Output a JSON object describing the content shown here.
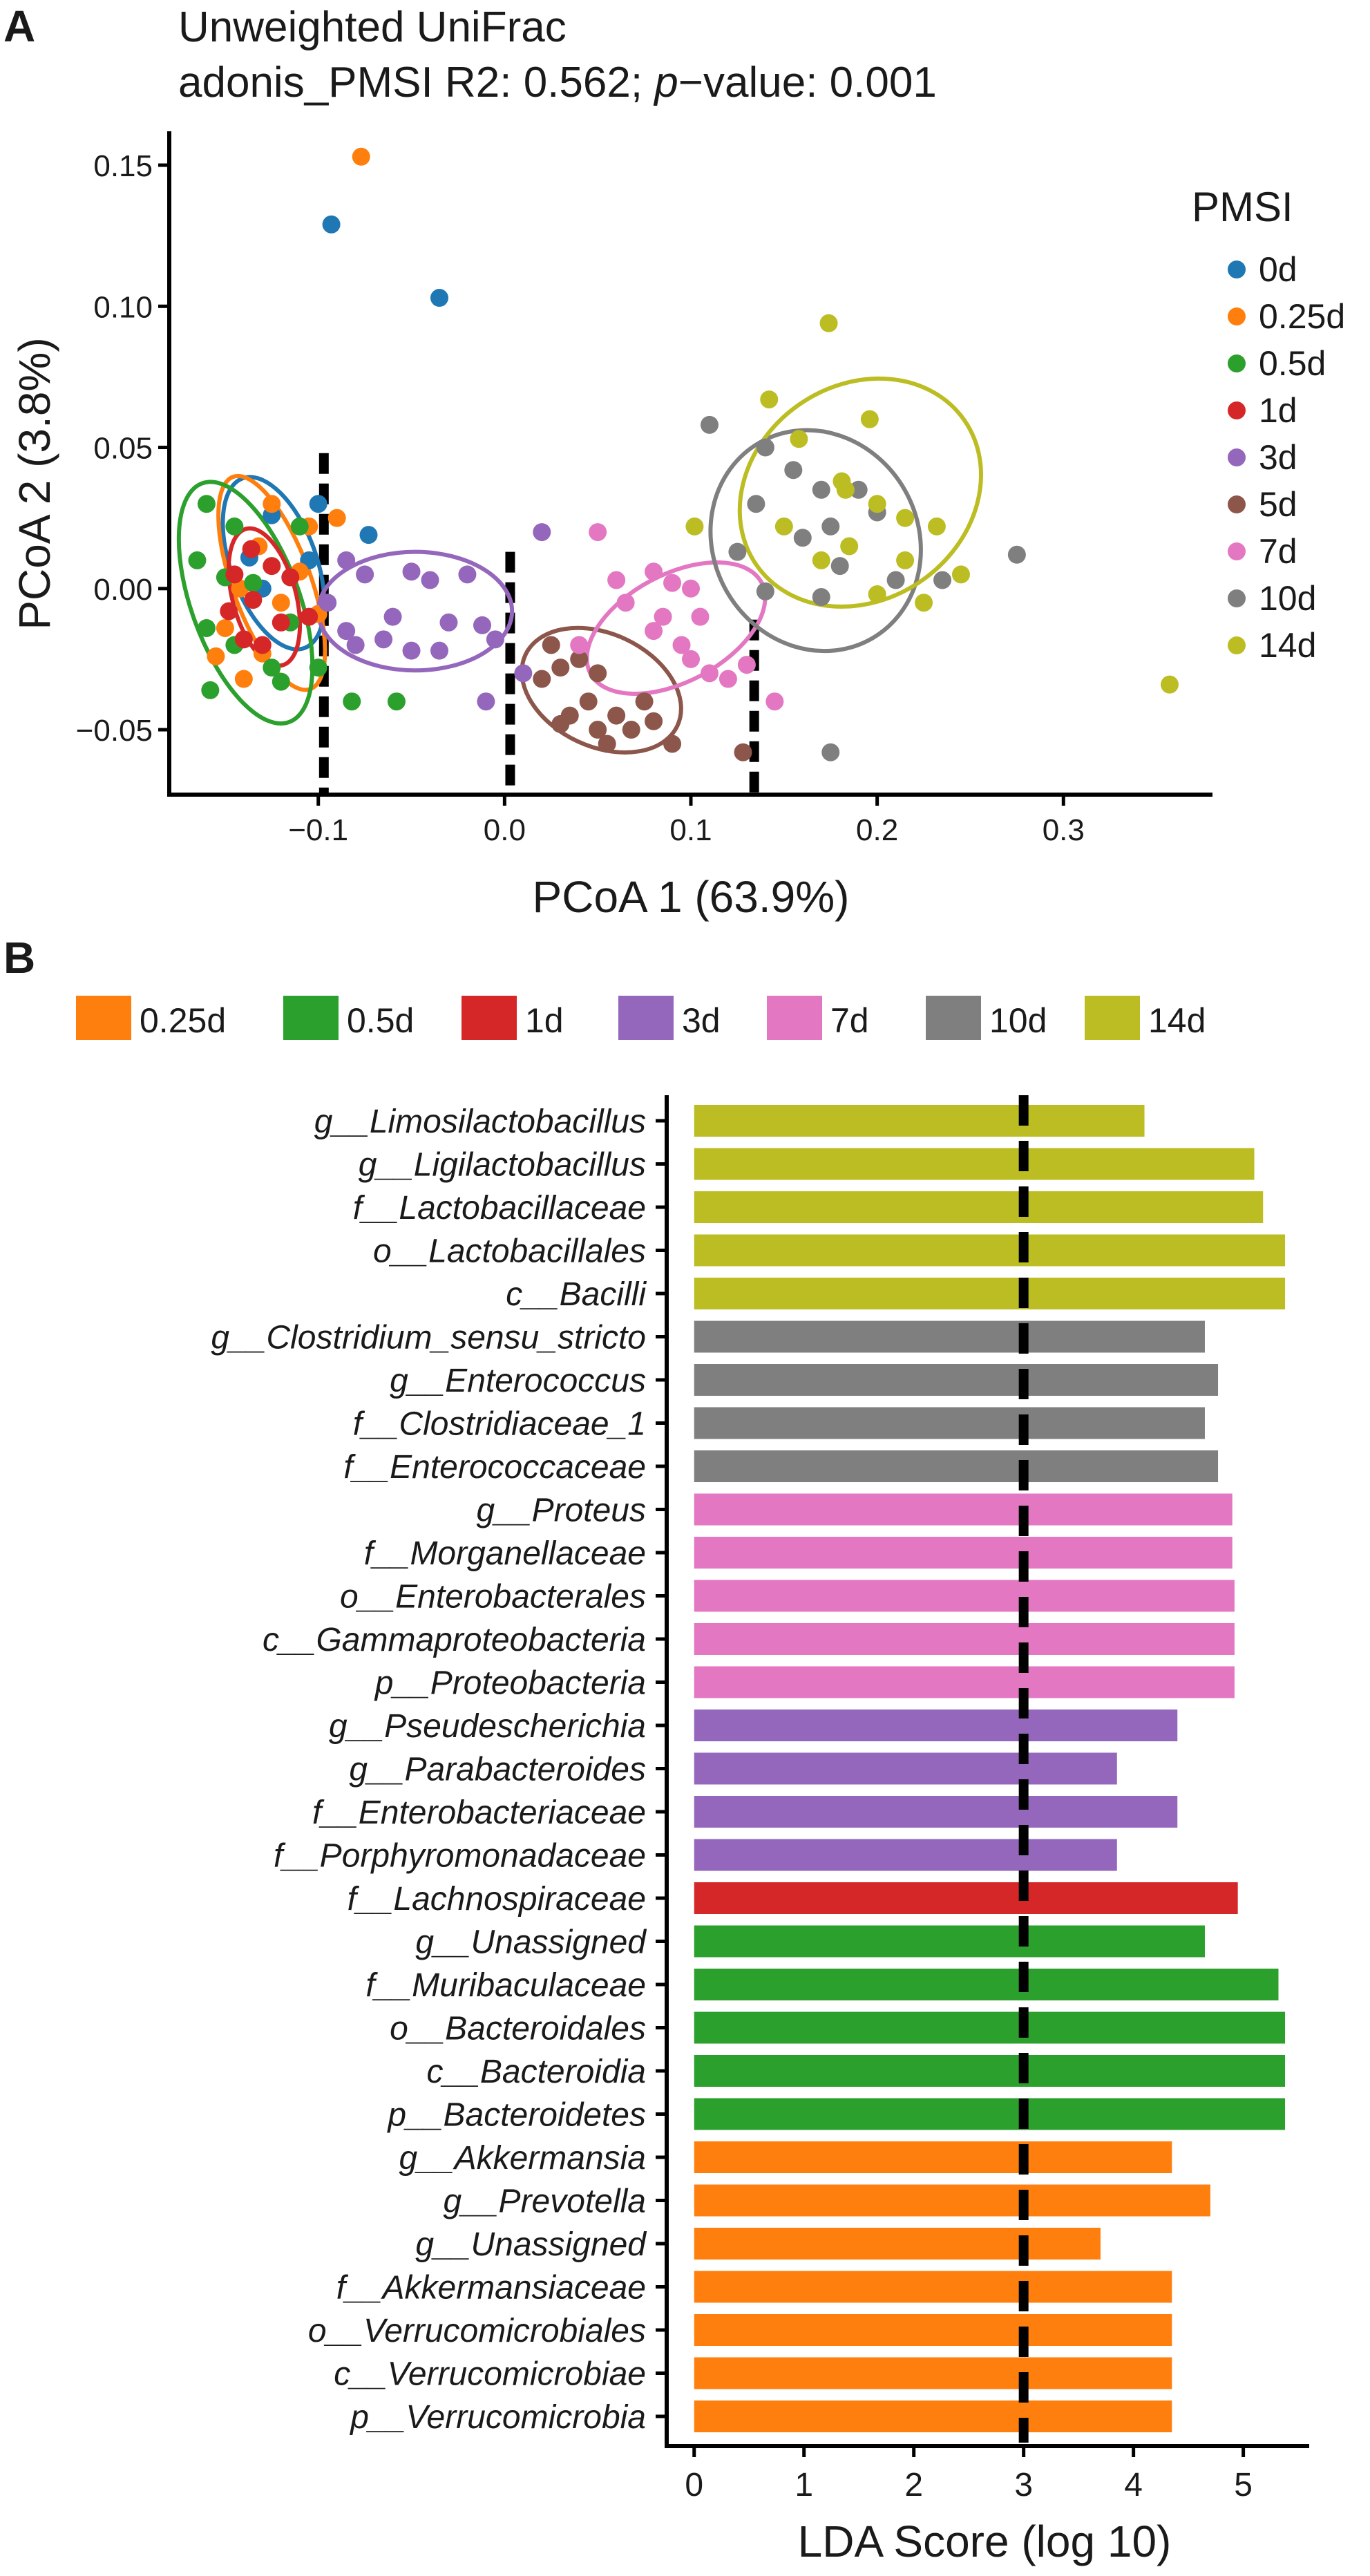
{
  "panel_a_label": "A",
  "panel_b_label": "B",
  "chart_data": [
    {
      "type": "scatter",
      "title": "Unweighted UniFrac",
      "subtitle": {
        "prefix": "adonis_PMSI R2: 0.562; ",
        "italic": "p",
        "suffix": "−value: 0.001"
      },
      "xlabel": "PCoA 1 (63.9%)",
      "ylabel": "PCoA 2 (3.8%)",
      "xlim": [
        -0.18,
        0.38
      ],
      "ylim": [
        -0.073,
        0.162
      ],
      "x_ticks": [
        {
          "value": -0.1,
          "label": "−0.1"
        },
        {
          "value": 0.0,
          "label": "0.0"
        },
        {
          "value": 0.1,
          "label": "0.1"
        },
        {
          "value": 0.2,
          "label": "0.2"
        },
        {
          "value": 0.3,
          "label": "0.3"
        }
      ],
      "y_ticks": [
        {
          "value": 0.15,
          "label": "0.15"
        },
        {
          "value": 0.1,
          "label": "0.10"
        },
        {
          "value": 0.05,
          "label": "0.05"
        },
        {
          "value": 0.0,
          "label": "0.00"
        },
        {
          "value": -0.05,
          "label": "−0.05"
        }
      ],
      "vlines": [
        {
          "x": -0.097,
          "y": [
            -0.085,
            0.048
          ]
        },
        {
          "x": 0.003,
          "y": [
            -0.085,
            0.013
          ]
        },
        {
          "x": 0.134,
          "y": [
            -0.085,
            -0.011
          ]
        }
      ],
      "legend_title": "PMSI",
      "legend_position": "right",
      "series": [
        {
          "name": "0d",
          "color": "#1f77b4",
          "points": [
            [
              -0.093,
              0.129
            ],
            [
              -0.035,
              0.103
            ],
            [
              -0.125,
              0.026
            ],
            [
              -0.1,
              0.03
            ],
            [
              -0.073,
              0.019
            ],
            [
              -0.137,
              0.011
            ],
            [
              -0.105,
              0.01
            ],
            [
              -0.13,
              0.0
            ]
          ],
          "ellipse": {
            "cx": -0.124,
            "cy": 0.009,
            "rx": 0.023,
            "ry": 0.032,
            "angle": -20
          }
        },
        {
          "name": "0.25d",
          "color": "#ff7f0e",
          "points": [
            [
              -0.077,
              0.153
            ],
            [
              -0.125,
              0.03
            ],
            [
              -0.105,
              0.022
            ],
            [
              -0.09,
              0.025
            ],
            [
              -0.132,
              0.015
            ],
            [
              -0.11,
              0.006
            ],
            [
              -0.142,
              0.0
            ],
            [
              -0.12,
              -0.005
            ],
            [
              -0.15,
              -0.014
            ],
            [
              -0.13,
              -0.023
            ],
            [
              -0.14,
              -0.032
            ],
            [
              -0.1,
              -0.009
            ],
            [
              -0.155,
              -0.024
            ]
          ],
          "ellipse": {
            "cx": -0.125,
            "cy": 0.002,
            "rx": 0.021,
            "ry": 0.04,
            "angle": -20
          }
        },
        {
          "name": "0.5d",
          "color": "#2ca02c",
          "points": [
            [
              -0.16,
              0.03
            ],
            [
              -0.145,
              0.022
            ],
            [
              -0.165,
              0.01
            ],
            [
              -0.15,
              0.004
            ],
            [
              -0.135,
              0.002
            ],
            [
              -0.16,
              -0.014
            ],
            [
              -0.145,
              -0.02
            ],
            [
              -0.125,
              -0.028
            ],
            [
              -0.115,
              -0.012
            ],
            [
              -0.1,
              -0.028
            ],
            [
              -0.158,
              -0.036
            ],
            [
              -0.12,
              -0.033
            ],
            [
              -0.082,
              -0.04
            ],
            [
              -0.058,
              -0.04
            ],
            [
              -0.11,
              0.022
            ]
          ],
          "ellipse": {
            "cx": -0.139,
            "cy": -0.005,
            "rx": 0.029,
            "ry": 0.045,
            "angle": -20
          }
        },
        {
          "name": "1d",
          "color": "#d62728",
          "points": [
            [
              -0.136,
              0.014
            ],
            [
              -0.125,
              0.008
            ],
            [
              -0.145,
              0.005
            ],
            [
              -0.115,
              0.004
            ],
            [
              -0.135,
              -0.004
            ],
            [
              -0.148,
              -0.008
            ],
            [
              -0.12,
              -0.012
            ],
            [
              -0.13,
              -0.02
            ],
            [
              -0.105,
              -0.01
            ],
            [
              -0.14,
              -0.018
            ]
          ],
          "ellipse": {
            "cx": -0.129,
            "cy": -0.003,
            "rx": 0.017,
            "ry": 0.025,
            "angle": -15
          }
        },
        {
          "name": "3d",
          "color": "#9467bd",
          "points": [
            [
              -0.085,
              0.01
            ],
            [
              -0.075,
              0.005
            ],
            [
              -0.05,
              0.006
            ],
            [
              -0.02,
              0.005
            ],
            [
              -0.04,
              0.003
            ],
            [
              -0.06,
              -0.01
            ],
            [
              -0.03,
              -0.012
            ],
            [
              -0.012,
              -0.013
            ],
            [
              -0.095,
              -0.005
            ],
            [
              -0.085,
              -0.015
            ],
            [
              -0.065,
              -0.018
            ],
            [
              -0.05,
              -0.022
            ],
            [
              -0.035,
              -0.022
            ],
            [
              -0.005,
              -0.018
            ],
            [
              0.02,
              0.02
            ],
            [
              0.01,
              -0.03
            ],
            [
              -0.01,
              -0.04
            ],
            [
              -0.08,
              -0.02
            ]
          ],
          "ellipse": {
            "cx": -0.048,
            "cy": -0.008,
            "rx": 0.052,
            "ry": 0.021,
            "angle": 0
          }
        },
        {
          "name": "5d",
          "color": "#8c564b",
          "points": [
            [
              0.025,
              -0.02
            ],
            [
              0.03,
              -0.028
            ],
            [
              0.04,
              -0.025
            ],
            [
              0.05,
              -0.03
            ],
            [
              0.02,
              -0.032
            ],
            [
              0.045,
              -0.04
            ],
            [
              0.035,
              -0.045
            ],
            [
              0.06,
              -0.045
            ],
            [
              0.075,
              -0.04
            ],
            [
              0.08,
              -0.047
            ],
            [
              0.05,
              -0.05
            ],
            [
              0.068,
              -0.05
            ],
            [
              0.055,
              -0.055
            ],
            [
              0.09,
              -0.055
            ],
            [
              0.03,
              -0.048
            ],
            [
              0.128,
              -0.058
            ]
          ],
          "ellipse": {
            "cx": 0.052,
            "cy": -0.036,
            "rx": 0.045,
            "ry": 0.02,
            "angle": 25
          }
        },
        {
          "name": "7d",
          "color": "#e377c2",
          "points": [
            [
              0.05,
              0.02
            ],
            [
              0.06,
              0.003
            ],
            [
              0.08,
              0.006
            ],
            [
              0.09,
              0.002
            ],
            [
              0.1,
              0.0
            ],
            [
              0.105,
              -0.01
            ],
            [
              0.08,
              -0.015
            ],
            [
              0.095,
              -0.02
            ],
            [
              0.1,
              -0.025
            ],
            [
              0.11,
              -0.03
            ],
            [
              0.12,
              -0.032
            ],
            [
              0.13,
              -0.027
            ],
            [
              0.145,
              -0.04
            ],
            [
              0.085,
              -0.01
            ],
            [
              0.065,
              -0.005
            ],
            [
              0.04,
              -0.02
            ]
          ],
          "ellipse": {
            "cx": 0.092,
            "cy": -0.014,
            "rx": 0.052,
            "ry": 0.019,
            "angle": -28
          }
        },
        {
          "name": "10d",
          "color": "#7f7f7f",
          "points": [
            [
              0.11,
              0.058
            ],
            [
              0.14,
              0.05
            ],
            [
              0.155,
              0.042
            ],
            [
              0.17,
              0.035
            ],
            [
              0.19,
              0.035
            ],
            [
              0.2,
              0.027
            ],
            [
              0.175,
              0.022
            ],
            [
              0.16,
              0.018
            ],
            [
              0.135,
              0.03
            ],
            [
              0.18,
              0.008
            ],
            [
              0.21,
              0.003
            ],
            [
              0.17,
              -0.003
            ],
            [
              0.14,
              -0.001
            ],
            [
              0.235,
              0.003
            ],
            [
              0.275,
              0.012
            ],
            [
              0.175,
              -0.058
            ],
            [
              0.125,
              0.013
            ]
          ],
          "ellipse": {
            "cx": 0.167,
            "cy": 0.017,
            "rx": 0.055,
            "ry": 0.04,
            "angle": -30
          }
        },
        {
          "name": "14d",
          "color": "#bcbd22",
          "points": [
            [
              0.174,
              0.094
            ],
            [
              0.142,
              0.067
            ],
            [
              0.196,
              0.06
            ],
            [
              0.158,
              0.053
            ],
            [
              0.181,
              0.038
            ],
            [
              0.2,
              0.03
            ],
            [
              0.215,
              0.025
            ],
            [
              0.232,
              0.022
            ],
            [
              0.15,
              0.022
            ],
            [
              0.17,
              0.01
            ],
            [
              0.185,
              0.015
            ],
            [
              0.215,
              0.01
            ],
            [
              0.245,
              0.005
            ],
            [
              0.2,
              -0.002
            ],
            [
              0.225,
              -0.005
            ],
            [
              0.102,
              0.022
            ],
            [
              0.183,
              0.035
            ],
            [
              0.357,
              -0.034
            ]
          ],
          "ellipse": {
            "cx": 0.191,
            "cy": 0.034,
            "rx": 0.068,
            "ry": 0.038,
            "angle": -35
          }
        }
      ]
    },
    {
      "type": "bar",
      "orientation": "horizontal",
      "xlabel": "LDA Score (log 10)",
      "xlim": [
        -0.25,
        5.6
      ],
      "x_ticks": [
        0,
        1,
        2,
        3,
        4,
        5
      ],
      "threshold": 3,
      "legend_position": "top",
      "groups": [
        {
          "name": "0.25d",
          "color": "#ff7f0e"
        },
        {
          "name": "0.5d",
          "color": "#2ca02c"
        },
        {
          "name": "1d",
          "color": "#d62728"
        },
        {
          "name": "3d",
          "color": "#9467bd"
        },
        {
          "name": "7d",
          "color": "#e377c2"
        },
        {
          "name": "10d",
          "color": "#7f7f7f"
        },
        {
          "name": "14d",
          "color": "#bcbd22"
        }
      ],
      "bars": [
        {
          "label": "g__Limosilactobacillus",
          "value": 4.1,
          "group": "14d"
        },
        {
          "label": "g__Ligilactobacillus",
          "value": 5.1,
          "group": "14d"
        },
        {
          "label": "f__Lactobacillaceae",
          "value": 5.18,
          "group": "14d"
        },
        {
          "label": "o__Lactobacillales",
          "value": 5.38,
          "group": "14d"
        },
        {
          "label": "c__Bacilli",
          "value": 5.38,
          "group": "14d"
        },
        {
          "label": "g__Clostridium_sensu_stricto",
          "value": 4.65,
          "group": "10d"
        },
        {
          "label": "g__Enterococcus",
          "value": 4.77,
          "group": "10d"
        },
        {
          "label": "f__Clostridiaceae_1",
          "value": 4.65,
          "group": "10d"
        },
        {
          "label": "f__Enterococcaceae",
          "value": 4.77,
          "group": "10d"
        },
        {
          "label": "g__Proteus",
          "value": 4.9,
          "group": "7d"
        },
        {
          "label": "f__Morganellaceae",
          "value": 4.9,
          "group": "7d"
        },
        {
          "label": "o__Enterobacterales",
          "value": 4.92,
          "group": "7d"
        },
        {
          "label": "c__Gammaproteobacteria",
          "value": 4.92,
          "group": "7d"
        },
        {
          "label": "p__Proteobacteria",
          "value": 4.92,
          "group": "7d"
        },
        {
          "label": "g__Pseudescherichia",
          "value": 4.4,
          "group": "3d"
        },
        {
          "label": "g__Parabacteroides",
          "value": 3.85,
          "group": "3d"
        },
        {
          "label": "f__Enterobacteriaceae",
          "value": 4.4,
          "group": "3d"
        },
        {
          "label": "f__Porphyromonadaceae",
          "value": 3.85,
          "group": "3d"
        },
        {
          "label": "f__Lachnospiraceae",
          "value": 4.95,
          "group": "1d"
        },
        {
          "label": "g__Unassigned",
          "value": 4.65,
          "group": "0.5d"
        },
        {
          "label": "f__Muribaculaceae",
          "value": 5.32,
          "group": "0.5d"
        },
        {
          "label": "o__Bacteroidales",
          "value": 5.38,
          "group": "0.5d"
        },
        {
          "label": "c__Bacteroidia",
          "value": 5.38,
          "group": "0.5d"
        },
        {
          "label": "p__Bacteroidetes",
          "value": 5.38,
          "group": "0.5d"
        },
        {
          "label": "g__Akkermansia",
          "value": 4.35,
          "group": "0.25d"
        },
        {
          "label": "g__Prevotella",
          "value": 4.7,
          "group": "0.25d"
        },
        {
          "label": "g__Unassigned",
          "value": 3.7,
          "group": "0.25d"
        },
        {
          "label": "f__Akkermansiaceae",
          "value": 4.35,
          "group": "0.25d"
        },
        {
          "label": "o__Verrucomicrobiales",
          "value": 4.35,
          "group": "0.25d"
        },
        {
          "label": "c__Verrucomicrobiae",
          "value": 4.35,
          "group": "0.25d"
        },
        {
          "label": "p__Verrucomicrobia",
          "value": 4.35,
          "group": "0.25d"
        }
      ]
    }
  ]
}
